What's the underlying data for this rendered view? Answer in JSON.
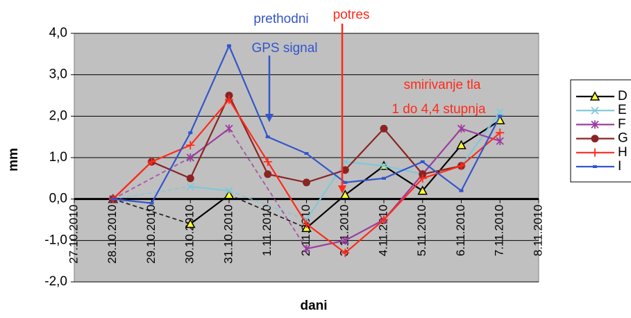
{
  "chart_data": {
    "type": "line",
    "x_label": "dani",
    "y_label": "mm",
    "categories": [
      "27.10.2010",
      "28.10.2010",
      "29.10.2010",
      "30.10.2010",
      "31.10.2010",
      "1.11.2010",
      "2.11.2010",
      "3.11.2010",
      "4.11.2010",
      "5.11.2010",
      "6.11.2010",
      "7.11.2010",
      "8.11.2010"
    ],
    "ylim": [
      -2,
      4
    ],
    "yticks": [
      {
        "value": -2,
        "label": "-2,0"
      },
      {
        "value": -1,
        "label": "-1,0"
      },
      {
        "value": 0,
        "label": "0,0"
      },
      {
        "value": 1,
        "label": "1,0"
      },
      {
        "value": 2,
        "label": "2,0"
      },
      {
        "value": 3,
        "label": "3,0"
      },
      {
        "value": 4,
        "label": "4,0"
      }
    ],
    "grid": true,
    "legend": "right",
    "series": [
      {
        "name": "D",
        "color": "#000000",
        "marker": "triangle",
        "values": [
          null,
          0,
          null,
          -0.6,
          0.1,
          null,
          -0.7,
          0.1,
          0.8,
          0.2,
          1.3,
          1.9,
          null
        ]
      },
      {
        "name": "E",
        "color": "#7fc8d8",
        "marker": "x",
        "values": [
          null,
          0,
          null,
          0.3,
          0.2,
          null,
          -0.5,
          0.9,
          0.8,
          0.6,
          0.8,
          2.1,
          null
        ]
      },
      {
        "name": "F",
        "color": "#9b3d9e",
        "marker": "star",
        "values": [
          null,
          0,
          null,
          1.0,
          1.7,
          null,
          -1.2,
          -1.0,
          -0.5,
          0.6,
          1.7,
          1.4,
          null
        ]
      },
      {
        "name": "G",
        "color": "#8b2323",
        "marker": "circle",
        "values": [
          null,
          0,
          0.9,
          0.5,
          2.5,
          0.6,
          0.4,
          0.7,
          1.7,
          0.6,
          0.8,
          null,
          null
        ]
      },
      {
        "name": "H",
        "color": "#ff2a1a",
        "marker": "plus",
        "values": [
          null,
          0,
          0.9,
          1.3,
          2.4,
          0.9,
          -0.6,
          -1.3,
          -0.5,
          0.5,
          0.8,
          1.6,
          null
        ]
      },
      {
        "name": "I",
        "color": "#3355cc",
        "marker": "dash",
        "values": [
          null,
          0,
          -0.1,
          1.6,
          3.7,
          1.5,
          1.1,
          0.4,
          0.5,
          0.9,
          0.2,
          2.0,
          null
        ]
      }
    ],
    "annotations": [
      {
        "text": "prethodni",
        "color": "#3355cc"
      },
      {
        "text": "GPS signal",
        "color": "#3355cc"
      },
      {
        "text": "potres",
        "color": "#ff2a1a"
      },
      {
        "text": "smirivanje tla",
        "color": "#ff2a1a"
      },
      {
        "text": "1 do 4,4 stupnja",
        "color": "#ff2a1a"
      }
    ]
  }
}
